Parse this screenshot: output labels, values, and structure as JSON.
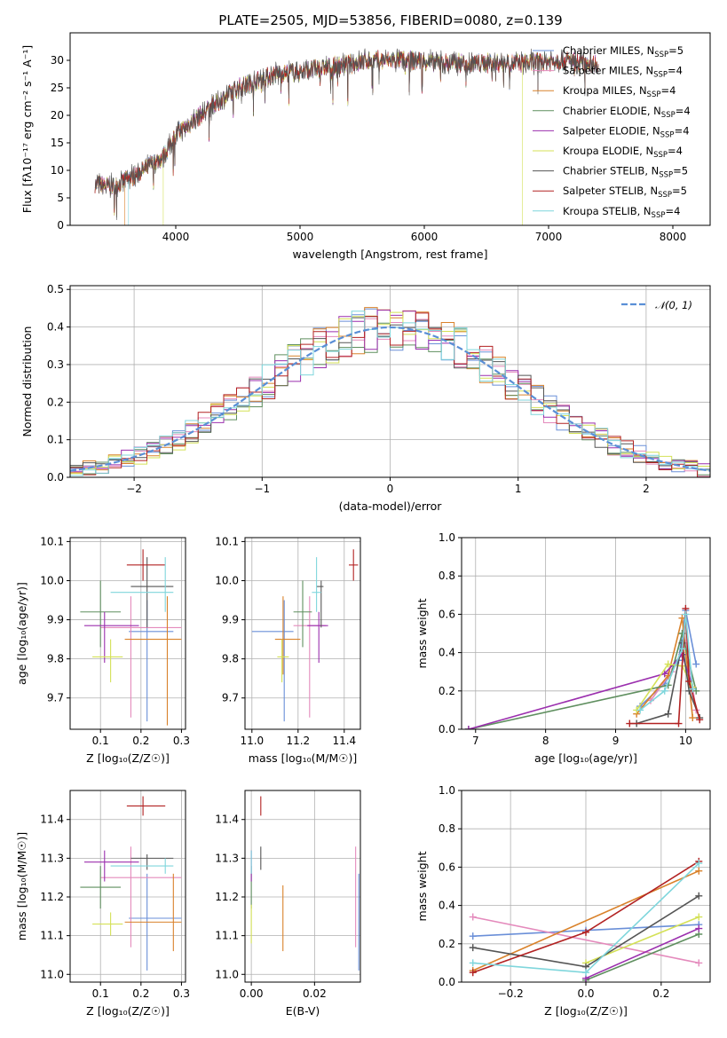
{
  "colors": {
    "Chabrier MILES": "#6a8fd8",
    "Salpeter MILES": "#e48abc",
    "Kroupa MILES": "#d9822b",
    "Chabrier ELODIE": "#5f8f5f",
    "Salpeter ELODIE": "#9b2fae",
    "Kroupa ELODIE": "#d4e157",
    "Chabrier STELIB": "#555555",
    "Salpeter STELIB": "#b22222",
    "Kroupa STELIB": "#7fd6dc",
    "normal": "#5a8fd6"
  },
  "legend_entries": [
    {
      "model": "Chabrier MILES",
      "nssp": "5"
    },
    {
      "model": "Salpeter MILES",
      "nssp": "4"
    },
    {
      "model": "Kroupa MILES",
      "nssp": "4"
    },
    {
      "model": "Chabrier ELODIE",
      "nssp": "4"
    },
    {
      "model": "Salpeter ELODIE",
      "nssp": "4"
    },
    {
      "model": "Kroupa ELODIE",
      "nssp": "4"
    },
    {
      "model": "Chabrier STELIB",
      "nssp": "5"
    },
    {
      "model": "Salpeter STELIB",
      "nssp": "5"
    },
    {
      "model": "Kroupa STELIB",
      "nssp": "4"
    }
  ],
  "chart_data": [
    {
      "id": "spectrum",
      "type": "line",
      "title": "PLATE=2505, MJD=53856, FIBERID=0080, z=0.139",
      "xlabel": "wavelength [Angstrom, rest frame]",
      "ylabel": "Flux [fλ10⁻¹⁷ erg cm⁻² s⁻¹ A⁻¹]",
      "xlim": [
        3150,
        8300
      ],
      "ylim": [
        0,
        35
      ],
      "xticks": [
        4000,
        5000,
        6000,
        7000,
        8000
      ],
      "yticks": [
        0,
        5,
        10,
        15,
        20,
        25,
        30
      ],
      "continuum_x": [
        3350,
        3500,
        3700,
        3900,
        4000,
        4200,
        4500,
        4800,
        5000,
        5300,
        5600,
        5900,
        6200,
        6500,
        6800,
        7100,
        7400
      ],
      "continuum_y": [
        7.5,
        7.0,
        9.5,
        12.5,
        16.5,
        20.0,
        25.0,
        27.5,
        28.0,
        29.0,
        30.0,
        30.0,
        29.5,
        29.5,
        29.5,
        30.0,
        29.5
      ],
      "dropouts": [
        {
          "model": "Kroupa MILES",
          "x": [
            3590,
            7420
          ]
        },
        {
          "model": "Kroupa ELODIE",
          "x": [
            3900,
            6790
          ]
        },
        {
          "model": "Kroupa STELIB",
          "x": [
            3620
          ]
        }
      ]
    },
    {
      "id": "residuals",
      "type": "line",
      "xlabel": "(data-model)/error",
      "ylabel": "Normed distribution",
      "xlim": [
        -2.5,
        2.5
      ],
      "ylim": [
        0,
        0.51
      ],
      "xticks": [
        -2,
        -1,
        0,
        1,
        2
      ],
      "yticks": [
        0,
        0.1,
        0.2,
        0.3,
        0.4,
        0.5
      ],
      "grid": true,
      "legend": "𝒩(0, 1)",
      "legend_position": "top-right",
      "bin_width": 0.1
    },
    {
      "id": "age-vs-Z",
      "type": "scatter",
      "xlabel": "Z [log₁₀(Z/Z☉)]",
      "ylabel": "age  [log₁₀(age/yr)]",
      "xlim": [
        0.025,
        0.31
      ],
      "ylim": [
        9.62,
        10.11
      ],
      "xticks": [
        0.1,
        0.2,
        0.3
      ],
      "yticks": [
        9.7,
        9.8,
        9.9,
        10.0,
        10.1
      ],
      "grid": true,
      "points": [
        {
          "model": "Chabrier MILES",
          "x": 0.215,
          "y": 9.87,
          "xlo": 0.17,
          "xhi": 0.28,
          "ylo": 9.64,
          "yhi": 9.95
        },
        {
          "model": "Salpeter MILES",
          "x": 0.175,
          "y": 9.88,
          "xlo": 0.1,
          "xhi": 0.3,
          "ylo": 9.65,
          "yhi": 9.96
        },
        {
          "model": "Kroupa MILES",
          "x": 0.265,
          "y": 9.85,
          "xlo": 0.16,
          "xhi": 0.3,
          "ylo": 9.63,
          "yhi": 9.96
        },
        {
          "model": "Chabrier ELODIE",
          "x": 0.1,
          "y": 9.92,
          "xlo": 0.05,
          "xhi": 0.15,
          "ylo": 9.83,
          "yhi": 10.0
        },
        {
          "model": "Salpeter ELODIE",
          "x": 0.11,
          "y": 9.885,
          "xlo": 0.06,
          "xhi": 0.195,
          "ylo": 9.79,
          "yhi": 9.92
        },
        {
          "model": "Kroupa ELODIE",
          "x": 0.125,
          "y": 9.805,
          "xlo": 0.08,
          "xhi": 0.155,
          "ylo": 9.74,
          "yhi": 9.85
        },
        {
          "model": "Chabrier STELIB",
          "x": 0.215,
          "y": 9.985,
          "xlo": 0.175,
          "xhi": 0.28,
          "ylo": 9.88,
          "yhi": 10.06
        },
        {
          "model": "Salpeter STELIB",
          "x": 0.205,
          "y": 10.04,
          "xlo": 0.165,
          "xhi": 0.26,
          "ylo": 10.0,
          "yhi": 10.08
        },
        {
          "model": "Kroupa STELIB",
          "x": 0.26,
          "y": 9.97,
          "xlo": 0.125,
          "xhi": 0.28,
          "ylo": 9.92,
          "yhi": 10.06
        }
      ]
    },
    {
      "id": "age-vs-mass",
      "type": "scatter",
      "xlabel": "mass [log₁₀(M/M☉)]",
      "ylabel": "",
      "xlim": [
        10.97,
        11.47
      ],
      "ylim": [
        9.62,
        10.11
      ],
      "xticks": [
        11.0,
        11.2,
        11.4
      ],
      "yticks": [
        9.7,
        9.8,
        9.9,
        10.0,
        10.1
      ],
      "grid": true,
      "points": [
        {
          "model": "Chabrier MILES",
          "x": 11.14,
          "y": 9.87,
          "xlo": 11.0,
          "xhi": 11.18,
          "ylo": 9.64,
          "yhi": 9.95
        },
        {
          "model": "Salpeter MILES",
          "x": 11.25,
          "y": 9.885,
          "xlo": 11.18,
          "xhi": 11.32,
          "ylo": 9.65,
          "yhi": 9.96
        },
        {
          "model": "Kroupa MILES",
          "x": 11.135,
          "y": 9.85,
          "xlo": 11.1,
          "xhi": 11.21,
          "ylo": 9.76,
          "yhi": 9.96
        },
        {
          "model": "Chabrier ELODIE",
          "x": 11.22,
          "y": 9.92,
          "xlo": 11.18,
          "xhi": 11.26,
          "ylo": 9.83,
          "yhi": 10.0
        },
        {
          "model": "Salpeter ELODIE",
          "x": 11.29,
          "y": 9.885,
          "xlo": 11.24,
          "xhi": 11.33,
          "ylo": 9.79,
          "yhi": 9.92
        },
        {
          "model": "Kroupa ELODIE",
          "x": 11.13,
          "y": 9.805,
          "xlo": 11.11,
          "xhi": 11.16,
          "ylo": 9.74,
          "yhi": 9.85
        },
        {
          "model": "Chabrier STELIB",
          "x": 11.3,
          "y": 9.985,
          "xlo": 11.28,
          "xhi": 11.31,
          "ylo": 9.88,
          "yhi": 10.0
        },
        {
          "model": "Salpeter STELIB",
          "x": 11.44,
          "y": 10.04,
          "xlo": 11.42,
          "xhi": 11.46,
          "ylo": 10.0,
          "yhi": 10.08
        },
        {
          "model": "Kroupa STELIB",
          "x": 11.28,
          "y": 9.97,
          "xlo": 11.26,
          "xhi": 11.3,
          "ylo": 9.92,
          "yhi": 10.06
        }
      ]
    },
    {
      "id": "massweight-vs-age",
      "type": "line",
      "xlabel": "age  [log₁₀(age/yr)]",
      "ylabel": "mass weight",
      "xlim": [
        6.8,
        10.35
      ],
      "ylim": [
        0,
        1.0
      ],
      "xticks": [
        7,
        8,
        9,
        10
      ],
      "yticks": [
        0,
        0.2,
        0.4,
        0.6,
        0.8,
        1.0
      ],
      "grid": true,
      "series": [
        {
          "model": "Chabrier MILES",
          "x": [
            9.35,
            9.7,
            9.9,
            10.0,
            10.15
          ],
          "y": [
            0.12,
            0.24,
            0.36,
            0.62,
            0.34
          ]
        },
        {
          "model": "Salpeter MILES",
          "x": [
            9.5,
            9.8,
            10.0,
            10.15
          ],
          "y": [
            0.15,
            0.3,
            0.45,
            0.1
          ]
        },
        {
          "model": "Kroupa MILES",
          "x": [
            9.3,
            9.75,
            9.95,
            10.1
          ],
          "y": [
            0.08,
            0.28,
            0.58,
            0.06
          ]
        },
        {
          "model": "Chabrier ELODIE",
          "x": [
            6.9,
            9.75,
            9.95,
            10.15
          ],
          "y": [
            0.0,
            0.23,
            0.5,
            0.2
          ]
        },
        {
          "model": "Salpeter ELODIE",
          "x": [
            6.9,
            9.7,
            9.95,
            10.1
          ],
          "y": [
            0.0,
            0.29,
            0.39,
            0.22
          ]
        },
        {
          "model": "Kroupa ELODIE",
          "x": [
            9.3,
            9.75,
            9.95,
            10.1
          ],
          "y": [
            0.1,
            0.34,
            0.33,
            0.22
          ]
        },
        {
          "model": "Chabrier STELIB",
          "x": [
            9.3,
            9.75,
            9.95,
            10.05,
            10.2
          ],
          "y": [
            0.03,
            0.08,
            0.45,
            0.2,
            0.06
          ]
        },
        {
          "model": "Salpeter STELIB",
          "x": [
            9.2,
            9.9,
            10.0,
            10.05,
            10.2
          ],
          "y": [
            0.03,
            0.03,
            0.63,
            0.25,
            0.05
          ]
        },
        {
          "model": "Kroupa STELIB",
          "x": [
            9.35,
            9.7,
            9.95,
            10.0,
            10.1
          ],
          "y": [
            0.1,
            0.2,
            0.42,
            0.6,
            0.21
          ]
        }
      ]
    },
    {
      "id": "mass-vs-Z",
      "type": "scatter",
      "xlabel": "Z [log₁₀(Z/Z☉)]",
      "ylabel": "mass [log₁₀(M/M☉)]",
      "xlim": [
        0.025,
        0.31
      ],
      "ylim": [
        10.98,
        11.475
      ],
      "xticks": [
        0.1,
        0.2,
        0.3
      ],
      "yticks": [
        11.0,
        11.1,
        11.2,
        11.3,
        11.4
      ],
      "grid": true,
      "points": [
        {
          "model": "Chabrier MILES",
          "x": 0.215,
          "y": 11.145,
          "xlo": 0.17,
          "xhi": 0.3,
          "ylo": 11.01,
          "yhi": 11.26
        },
        {
          "model": "Salpeter MILES",
          "x": 0.175,
          "y": 11.25,
          "xlo": 0.1,
          "xhi": 0.3,
          "ylo": 11.07,
          "yhi": 11.33
        },
        {
          "model": "Kroupa MILES",
          "x": 0.28,
          "y": 11.135,
          "xlo": 0.16,
          "xhi": 0.3,
          "ylo": 11.06,
          "yhi": 11.26
        },
        {
          "model": "Chabrier ELODIE",
          "x": 0.1,
          "y": 11.225,
          "xlo": 0.05,
          "xhi": 0.15,
          "ylo": 11.17,
          "yhi": 11.28
        },
        {
          "model": "Salpeter ELODIE",
          "x": 0.11,
          "y": 11.29,
          "xlo": 0.06,
          "xhi": 0.195,
          "ylo": 11.24,
          "yhi": 11.32
        },
        {
          "model": "Kroupa ELODIE",
          "x": 0.125,
          "y": 11.13,
          "xlo": 0.08,
          "xhi": 0.155,
          "ylo": 11.1,
          "yhi": 11.16
        },
        {
          "model": "Chabrier STELIB",
          "x": 0.215,
          "y": 11.3,
          "xlo": 0.175,
          "xhi": 0.28,
          "ylo": 11.27,
          "yhi": 11.31
        },
        {
          "model": "Salpeter STELIB",
          "x": 0.205,
          "y": 11.435,
          "xlo": 0.165,
          "xhi": 0.26,
          "ylo": 11.41,
          "yhi": 11.46
        },
        {
          "model": "Kroupa STELIB",
          "x": 0.26,
          "y": 11.28,
          "xlo": 0.125,
          "xhi": 0.28,
          "ylo": 11.26,
          "yhi": 11.3
        }
      ]
    },
    {
      "id": "mass-vs-EBV",
      "type": "scatter",
      "xlabel": "E(B-V)",
      "ylabel": "",
      "xlim": [
        -0.002,
        0.0345
      ],
      "ylim": [
        10.98,
        11.475
      ],
      "xticks": [
        0.0,
        0.02
      ],
      "yticks": [
        11.0,
        11.1,
        11.2,
        11.3,
        11.4
      ],
      "grid": true,
      "points": [
        {
          "model": "Chabrier MILES",
          "x": 0.034,
          "y": 11.145,
          "ylo": 11.01,
          "yhi": 11.26
        },
        {
          "model": "Salpeter MILES",
          "x": 0.033,
          "y": 11.25,
          "ylo": 11.07,
          "yhi": 11.33
        },
        {
          "model": "Kroupa MILES",
          "x": 0.01,
          "y": 11.135,
          "ylo": 11.06,
          "yhi": 11.23
        },
        {
          "model": "Chabrier ELODIE",
          "x": 0.0,
          "y": 11.225,
          "ylo": 11.17,
          "yhi": 11.28
        },
        {
          "model": "Salpeter ELODIE",
          "x": 0.0,
          "y": 11.29,
          "ylo": 11.24,
          "yhi": 11.32
        },
        {
          "model": "Kroupa ELODIE",
          "x": 0.0,
          "y": 11.13,
          "ylo": 11.08,
          "yhi": 11.18
        },
        {
          "model": "Chabrier STELIB",
          "x": 0.003,
          "y": 11.3,
          "ylo": 11.27,
          "yhi": 11.33
        },
        {
          "model": "Salpeter STELIB",
          "x": 0.003,
          "y": 11.435,
          "ylo": 11.41,
          "yhi": 11.46
        },
        {
          "model": "Kroupa STELIB",
          "x": 0.0,
          "y": 11.28,
          "ylo": 11.26,
          "yhi": 11.32
        }
      ]
    },
    {
      "id": "massweight-vs-Z",
      "type": "line",
      "xlabel": "Z [log₁₀(Z/Z☉)]",
      "ylabel": "mass weight",
      "xlim": [
        -0.33,
        0.33
      ],
      "ylim": [
        0,
        1.0
      ],
      "xticks": [
        -0.2,
        0.0,
        0.2
      ],
      "yticks": [
        0,
        0.2,
        0.4,
        0.6,
        0.8,
        1.0
      ],
      "grid": true,
      "series": [
        {
          "model": "Chabrier MILES",
          "x": [
            -0.3,
            0.0,
            0.3
          ],
          "y": [
            0.24,
            0.27,
            0.3
          ]
        },
        {
          "model": "Salpeter MILES",
          "x": [
            -0.3,
            0.3
          ],
          "y": [
            0.34,
            0.1
          ]
        },
        {
          "model": "Kroupa MILES",
          "x": [
            -0.3,
            0.3
          ],
          "y": [
            0.06,
            0.58
          ]
        },
        {
          "model": "Chabrier ELODIE",
          "x": [
            0.0,
            0.3
          ],
          "y": [
            0.01,
            0.25
          ]
        },
        {
          "model": "Salpeter ELODIE",
          "x": [
            0.0,
            0.3
          ],
          "y": [
            0.02,
            0.28
          ]
        },
        {
          "model": "Kroupa ELODIE",
          "x": [
            0.0,
            0.3
          ],
          "y": [
            0.1,
            0.34
          ]
        },
        {
          "model": "Chabrier STELIB",
          "x": [
            -0.3,
            0.0,
            0.3
          ],
          "y": [
            0.18,
            0.08,
            0.45
          ]
        },
        {
          "model": "Salpeter STELIB",
          "x": [
            -0.3,
            0.0,
            0.3
          ],
          "y": [
            0.05,
            0.26,
            0.63
          ]
        },
        {
          "model": "Kroupa STELIB",
          "x": [
            -0.3,
            0.0,
            0.3
          ],
          "y": [
            0.1,
            0.05,
            0.62
          ]
        }
      ]
    }
  ]
}
